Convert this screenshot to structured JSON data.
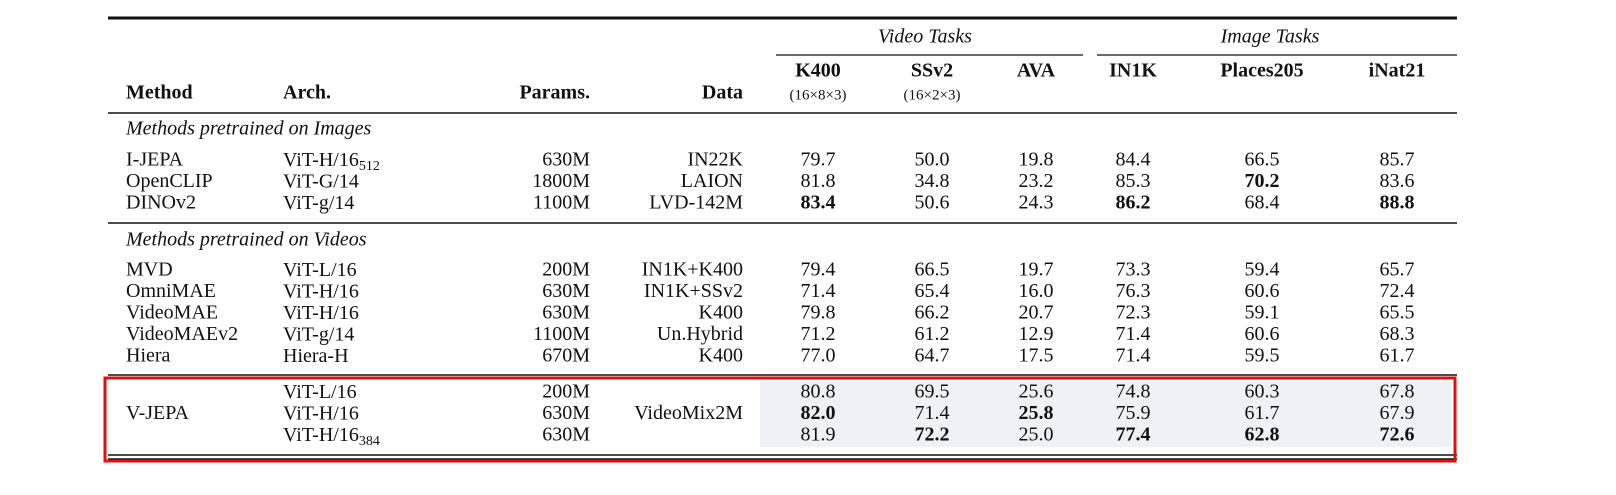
{
  "header": {
    "groups": [
      "Video Tasks",
      "Image Tasks"
    ],
    "columns": [
      "Method",
      "Arch.",
      "Params.",
      "Data",
      "K400",
      "SSv2",
      "AVA",
      "IN1K",
      "Places205",
      "iNat21"
    ],
    "notes": [
      "(16×8×3)",
      "(16×2×3)"
    ]
  },
  "sections": [
    {
      "title": "Methods pretrained on Images",
      "rows": [
        {
          "method": "I-JEPA",
          "arch": "ViT-H/16",
          "arch_sub": "512",
          "params": "630M",
          "data": "IN22K",
          "scores": [
            "79.7",
            "50.0",
            "19.8",
            "84.4",
            "66.5",
            "85.7"
          ],
          "bold": []
        },
        {
          "method": "OpenCLIP",
          "arch": "ViT-G/14",
          "params": "1800M",
          "data": "LAION",
          "scores": [
            "81.8",
            "34.8",
            "23.2",
            "85.3",
            "70.2",
            "83.6"
          ],
          "bold": [
            4
          ]
        },
        {
          "method": "DINOv2",
          "arch": "ViT-g/14",
          "params": "1100M",
          "data": "LVD-142M",
          "scores": [
            "83.4",
            "50.6",
            "24.3",
            "86.2",
            "68.4",
            "88.8"
          ],
          "bold": [
            0,
            3,
            5
          ]
        }
      ]
    },
    {
      "title": "Methods pretrained on Videos",
      "rows": [
        {
          "method": "MVD",
          "arch": "ViT-L/16",
          "params": "200M",
          "data": "IN1K+K400",
          "scores": [
            "79.4",
            "66.5",
            "19.7",
            "73.3",
            "59.4",
            "65.7"
          ],
          "bold": []
        },
        {
          "method": "OmniMAE",
          "arch": "ViT-H/16",
          "params": "630M",
          "data": "IN1K+SSv2",
          "scores": [
            "71.4",
            "65.4",
            "16.0",
            "76.3",
            "60.6",
            "72.4"
          ],
          "bold": []
        },
        {
          "method": "VideoMAE",
          "arch": "ViT-H/16",
          "params": "630M",
          "data": "K400",
          "scores": [
            "79.8",
            "66.2",
            "20.7",
            "72.3",
            "59.1",
            "65.5"
          ],
          "bold": []
        },
        {
          "method": "VideoMAEv2",
          "arch": "ViT-g/14",
          "params": "1100M",
          "data": "Un.Hybrid",
          "scores": [
            "71.2",
            "61.2",
            "12.9",
            "71.4",
            "60.6",
            "68.3"
          ],
          "bold": []
        },
        {
          "method": "Hiera",
          "arch": "Hiera-H",
          "params": "670M",
          "data": "K400",
          "scores": [
            "77.0",
            "64.7",
            "17.5",
            "71.4",
            "59.5",
            "61.7"
          ],
          "bold": []
        }
      ]
    },
    {
      "method": "V-JEPA",
      "data": "VideoMix2M",
      "rows": [
        {
          "arch": "ViT-L/16",
          "params": "200M",
          "scores": [
            "80.8",
            "69.5",
            "25.6",
            "74.8",
            "60.3",
            "67.8"
          ],
          "bold": []
        },
        {
          "arch": "ViT-H/16",
          "params": "630M",
          "scores": [
            "82.0",
            "71.4",
            "25.8",
            "75.9",
            "61.7",
            "67.9"
          ],
          "bold": [
            0,
            2
          ]
        },
        {
          "arch": "ViT-H/16",
          "arch_sub": "384",
          "params": "630M",
          "scores": [
            "81.9",
            "72.2",
            "25.0",
            "77.4",
            "62.8",
            "72.6"
          ],
          "bold": [
            1,
            3,
            4,
            5
          ]
        }
      ]
    }
  ]
}
